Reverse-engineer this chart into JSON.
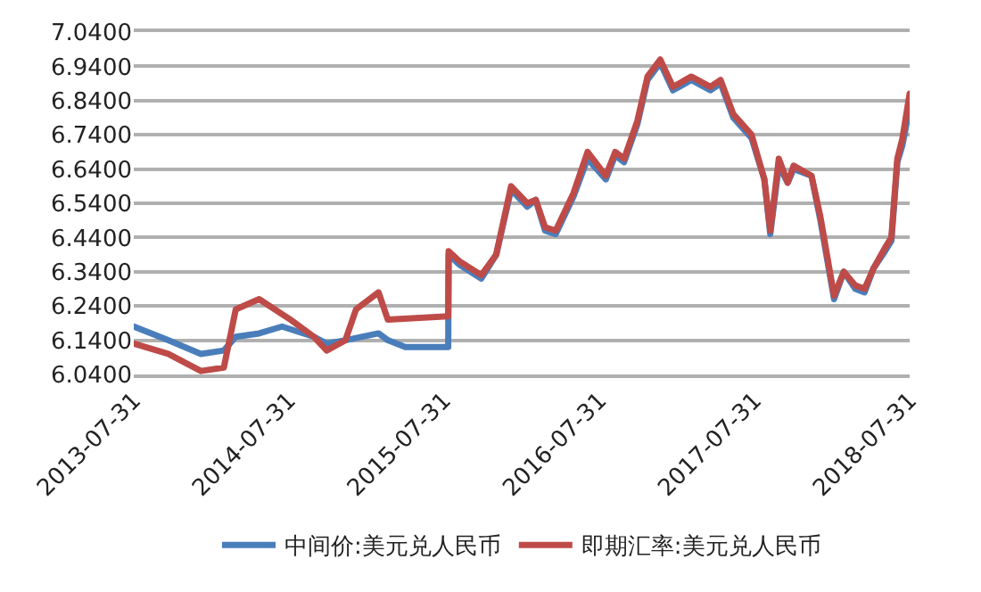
{
  "chart_data": {
    "type": "line",
    "xlim": [
      "2013-07-31",
      "2018-07-31"
    ],
    "xticks": [
      "2013-07-31",
      "2014-07-31",
      "2015-07-31",
      "2016-07-31",
      "2017-07-31",
      "2018-07-31"
    ],
    "ylim": [
      6.04,
      7.04
    ],
    "yticks": [
      {
        "value": 6.04,
        "label": "6.0400"
      },
      {
        "value": 6.14,
        "label": "6.1400"
      },
      {
        "value": 6.24,
        "label": "6.2400"
      },
      {
        "value": 6.34,
        "label": "6.3400"
      },
      {
        "value": 6.44,
        "label": "6.4400"
      },
      {
        "value": 6.54,
        "label": "6.5400"
      },
      {
        "value": 6.64,
        "label": "6.6400"
      },
      {
        "value": 6.74,
        "label": "6.7400"
      },
      {
        "value": 6.84,
        "label": "6.8400"
      },
      {
        "value": 6.94,
        "label": "6.9400"
      },
      {
        "value": 7.04,
        "label": "7.0400"
      }
    ],
    "grid": "y",
    "legend": "bottom",
    "marker": "none",
    "line_style": "solid",
    "series": [
      {
        "name": "中间价:美元兑人民币",
        "color": "#4a7ebb",
        "x": [
          "2013-07-31",
          "2013-10-20",
          "2014-01-05",
          "2014-02-28",
          "2014-03-28",
          "2014-05-22",
          "2014-07-15",
          "2014-09-28",
          "2014-10-28",
          "2014-12-11",
          "2015-02-27",
          "2015-03-21",
          "2015-05-01",
          "2015-08-10",
          "2015-08-11",
          "2015-09-06",
          "2015-10-27",
          "2015-12-01",
          "2016-01-05",
          "2016-02-12",
          "2016-03-03",
          "2016-03-25",
          "2016-04-19",
          "2016-05-31",
          "2016-07-03",
          "2016-08-15",
          "2016-09-06",
          "2016-09-27",
          "2016-10-28",
          "2016-11-21",
          "2016-12-21",
          "2017-01-20",
          "2017-03-04",
          "2017-04-18",
          "2017-05-12",
          "2017-06-11",
          "2017-07-24",
          "2017-08-23",
          "2017-09-06",
          "2017-09-26",
          "2017-10-17",
          "2017-10-31",
          "2017-12-12",
          "2018-01-02",
          "2018-02-03",
          "2018-02-26",
          "2018-03-25",
          "2018-04-16",
          "2018-05-07",
          "2018-06-03",
          "2018-06-18",
          "2018-07-02",
          "2018-07-14",
          "2018-07-31"
        ],
        "values": [
          6.18,
          6.14,
          6.1,
          6.11,
          6.15,
          6.16,
          6.18,
          6.15,
          6.13,
          6.14,
          6.16,
          6.14,
          6.12,
          6.12,
          6.39,
          6.36,
          6.32,
          6.39,
          6.58,
          6.53,
          6.55,
          6.46,
          6.45,
          6.56,
          6.67,
          6.61,
          6.68,
          6.66,
          6.77,
          6.9,
          6.95,
          6.87,
          6.9,
          6.87,
          6.89,
          6.79,
          6.73,
          6.61,
          6.45,
          6.65,
          6.6,
          6.64,
          6.62,
          6.49,
          6.26,
          6.34,
          6.29,
          6.28,
          6.35,
          6.4,
          6.43,
          6.66,
          6.71,
          6.82
        ]
      },
      {
        "name": "即期汇率:美元兑人民币",
        "color": "#be4b48",
        "x": [
          "2013-07-31",
          "2013-10-20",
          "2014-01-05",
          "2014-02-28",
          "2014-03-28",
          "2014-05-22",
          "2014-08-04",
          "2014-09-28",
          "2014-10-28",
          "2014-12-11",
          "2015-01-05",
          "2015-02-27",
          "2015-03-21",
          "2015-08-10",
          "2015-08-11",
          "2015-09-06",
          "2015-10-27",
          "2015-12-01",
          "2016-01-05",
          "2016-02-12",
          "2016-03-03",
          "2016-03-25",
          "2016-04-19",
          "2016-05-31",
          "2016-07-03",
          "2016-08-15",
          "2016-09-06",
          "2016-09-27",
          "2016-10-28",
          "2016-11-21",
          "2016-12-21",
          "2017-01-20",
          "2017-03-04",
          "2017-04-18",
          "2017-05-12",
          "2017-06-11",
          "2017-07-24",
          "2017-08-23",
          "2017-09-06",
          "2017-09-26",
          "2017-10-17",
          "2017-10-31",
          "2017-12-12",
          "2018-01-02",
          "2018-02-03",
          "2018-02-26",
          "2018-03-25",
          "2018-04-16",
          "2018-05-07",
          "2018-06-03",
          "2018-06-18",
          "2018-07-02",
          "2018-07-14",
          "2018-07-31"
        ],
        "values": [
          6.13,
          6.1,
          6.05,
          6.06,
          6.23,
          6.26,
          6.2,
          6.15,
          6.11,
          6.14,
          6.23,
          6.28,
          6.2,
          6.21,
          6.4,
          6.37,
          6.33,
          6.39,
          6.59,
          6.54,
          6.55,
          6.47,
          6.46,
          6.57,
          6.69,
          6.62,
          6.69,
          6.67,
          6.78,
          6.91,
          6.96,
          6.88,
          6.91,
          6.88,
          6.9,
          6.8,
          6.74,
          6.61,
          6.46,
          6.67,
          6.6,
          6.65,
          6.62,
          6.5,
          6.27,
          6.34,
          6.3,
          6.29,
          6.35,
          6.41,
          6.44,
          6.67,
          6.73,
          6.86
        ]
      }
    ]
  }
}
